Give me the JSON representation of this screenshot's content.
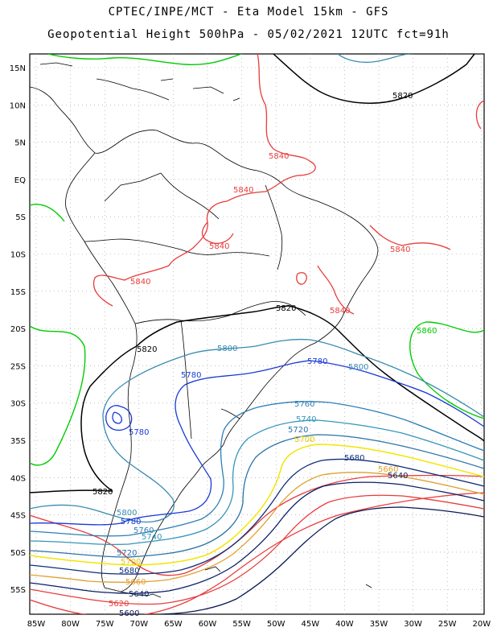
{
  "header": {
    "title_line1": "CPTEC/INPE/MCT -  Eta Model 15km - GFS",
    "title_line2": "Geopotential Height 500hPa - 05/02/2021 12UTC fct=91h"
  },
  "axes": {
    "lat_labels": [
      "15N",
      "10N",
      "5N",
      "EQ",
      "5S",
      "10S",
      "15S",
      "20S",
      "25S",
      "30S",
      "35S",
      "40S",
      "45S",
      "50S",
      "55S"
    ],
    "lon_labels": [
      "85W",
      "80W",
      "75W",
      "70W",
      "65W",
      "60W",
      "55W",
      "50W",
      "45W",
      "40W",
      "35W",
      "30W",
      "25W",
      "20W"
    ],
    "grid": true
  },
  "contours": [
    {
      "value": "5860",
      "color": "#00cc00"
    },
    {
      "value": "5840",
      "color": "#e83c3c"
    },
    {
      "value": "5820",
      "color": "#000000"
    },
    {
      "value": "5800",
      "color": "#3a8bb0"
    },
    {
      "value": "5780",
      "color": "#1a3ad6"
    },
    {
      "value": "5760",
      "color": "#2e7fb5"
    },
    {
      "value": "5740",
      "color": "#3496b8"
    },
    {
      "value": "5720",
      "color": "#2a73a6"
    },
    {
      "value": "5700",
      "color": "#f2e600"
    },
    {
      "value": "5680",
      "color": "#0f2f7a"
    },
    {
      "value": "5660",
      "color": "#e0a030"
    },
    {
      "value": "5640",
      "color": "#0a1f66"
    },
    {
      "value": "5620",
      "color": "#e83c3c"
    },
    {
      "value": "5600",
      "color": "#0a1a55"
    }
  ],
  "labels": {
    "l5820_a": "5820",
    "l5820_b": "5820",
    "l5820_c": "5820",
    "l5820_d": "5820",
    "l5840_a": "5840",
    "l5840_b": "5840",
    "l5840_c": "5840",
    "l5840_d": "5840",
    "l5840_e": "5840",
    "l5840_f": "5840",
    "l5840_g": "5840",
    "l5860": "5860",
    "l5800_a": "5800",
    "l5800_b": "5800",
    "l5800_c": "5800",
    "l5780_a": "5780",
    "l5780_b": "5780",
    "l5780_c": "5780",
    "l5780_d": "5780",
    "l5760_a": "5760",
    "l5760_b": "5760",
    "l5740_a": "5740",
    "l5740_b": "5740",
    "l5720_a": "5720",
    "l5720_b": "5720",
    "l5700_a": "5700",
    "l5700_b": "5700",
    "l5680_a": "5680",
    "l5680_b": "5680",
    "l5660_a": "5660",
    "l5660_b": "5660",
    "l5640_a": "5640",
    "l5640_b": "5640",
    "l5620": "5620",
    "l5600": "5600"
  }
}
